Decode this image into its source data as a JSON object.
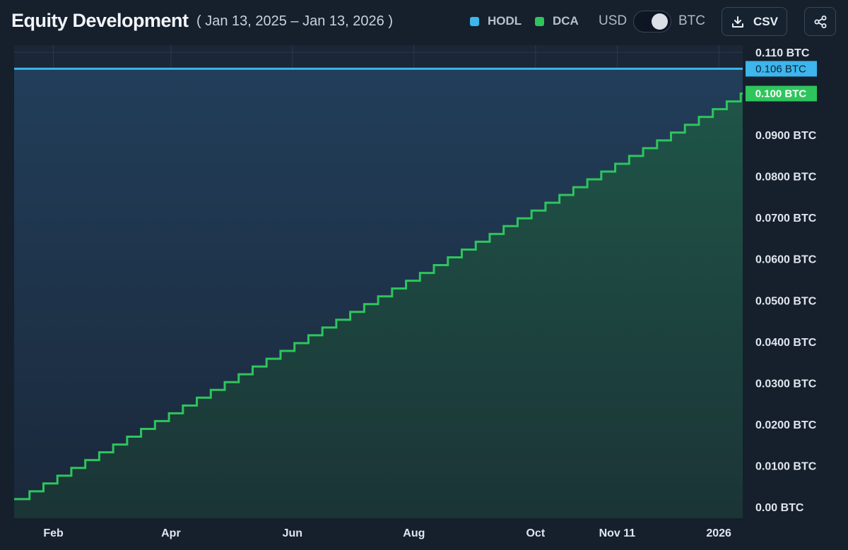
{
  "header": {
    "title": "Equity Development",
    "date_range": "( Jan 13, 2025 – Jan 13, 2026 )",
    "legend": [
      {
        "label": "HODL",
        "color": "#3cb6ec"
      },
      {
        "label": "DCA",
        "color": "#2ec55d"
      }
    ],
    "unit_toggle": {
      "left": "USD",
      "right": "BTC",
      "selected": "BTC"
    },
    "csv_label": "CSV",
    "download_icon": "download-icon",
    "share_icon": "share-icon"
  },
  "chart_data": {
    "type": "line",
    "x_start": "2025-01-13",
    "x_end": "2026-01-13",
    "xtick_labels": [
      {
        "date": "2025-02-01",
        "label": "Feb"
      },
      {
        "date": "2025-04-01",
        "label": "Apr"
      },
      {
        "date": "2025-06-01",
        "label": "Jun"
      },
      {
        "date": "2025-08-01",
        "label": "Aug"
      },
      {
        "date": "2025-10-01",
        "label": "Oct"
      },
      {
        "date": "2025-11-11",
        "label": "Nov 11"
      },
      {
        "date": "2026-01-01",
        "label": "2026"
      }
    ],
    "ylim": [
      0,
      0.11
    ],
    "yticks": [
      {
        "value": 0,
        "label": "0.00 BTC"
      },
      {
        "value": 0.01,
        "label": "0.0100 BTC"
      },
      {
        "value": 0.02,
        "label": "0.0200 BTC"
      },
      {
        "value": 0.03,
        "label": "0.0300 BTC"
      },
      {
        "value": 0.04,
        "label": "0.0400 BTC"
      },
      {
        "value": 0.05,
        "label": "0.0500 BTC"
      },
      {
        "value": 0.06,
        "label": "0.0600 BTC"
      },
      {
        "value": 0.07,
        "label": "0.0700 BTC"
      },
      {
        "value": 0.08,
        "label": "0.0800 BTC"
      },
      {
        "value": 0.09,
        "label": "0.0900 BTC"
      },
      {
        "value": 0.11,
        "label": "0.110 BTC"
      }
    ],
    "grid": true,
    "series": [
      {
        "name": "HODL",
        "color": "#3cb6ec",
        "shape": "flat",
        "x": [
          "2025-01-13",
          "2026-01-13"
        ],
        "y": [
          0.106,
          0.106
        ],
        "last_value_label": "0.106 BTC"
      },
      {
        "name": "DCA",
        "color": "#2ec55d",
        "shape": "step",
        "x_step_interval_days": 7,
        "y_first": 0.0019,
        "y_last": 0.1,
        "last_value_label": "0.100 BTC"
      }
    ]
  }
}
